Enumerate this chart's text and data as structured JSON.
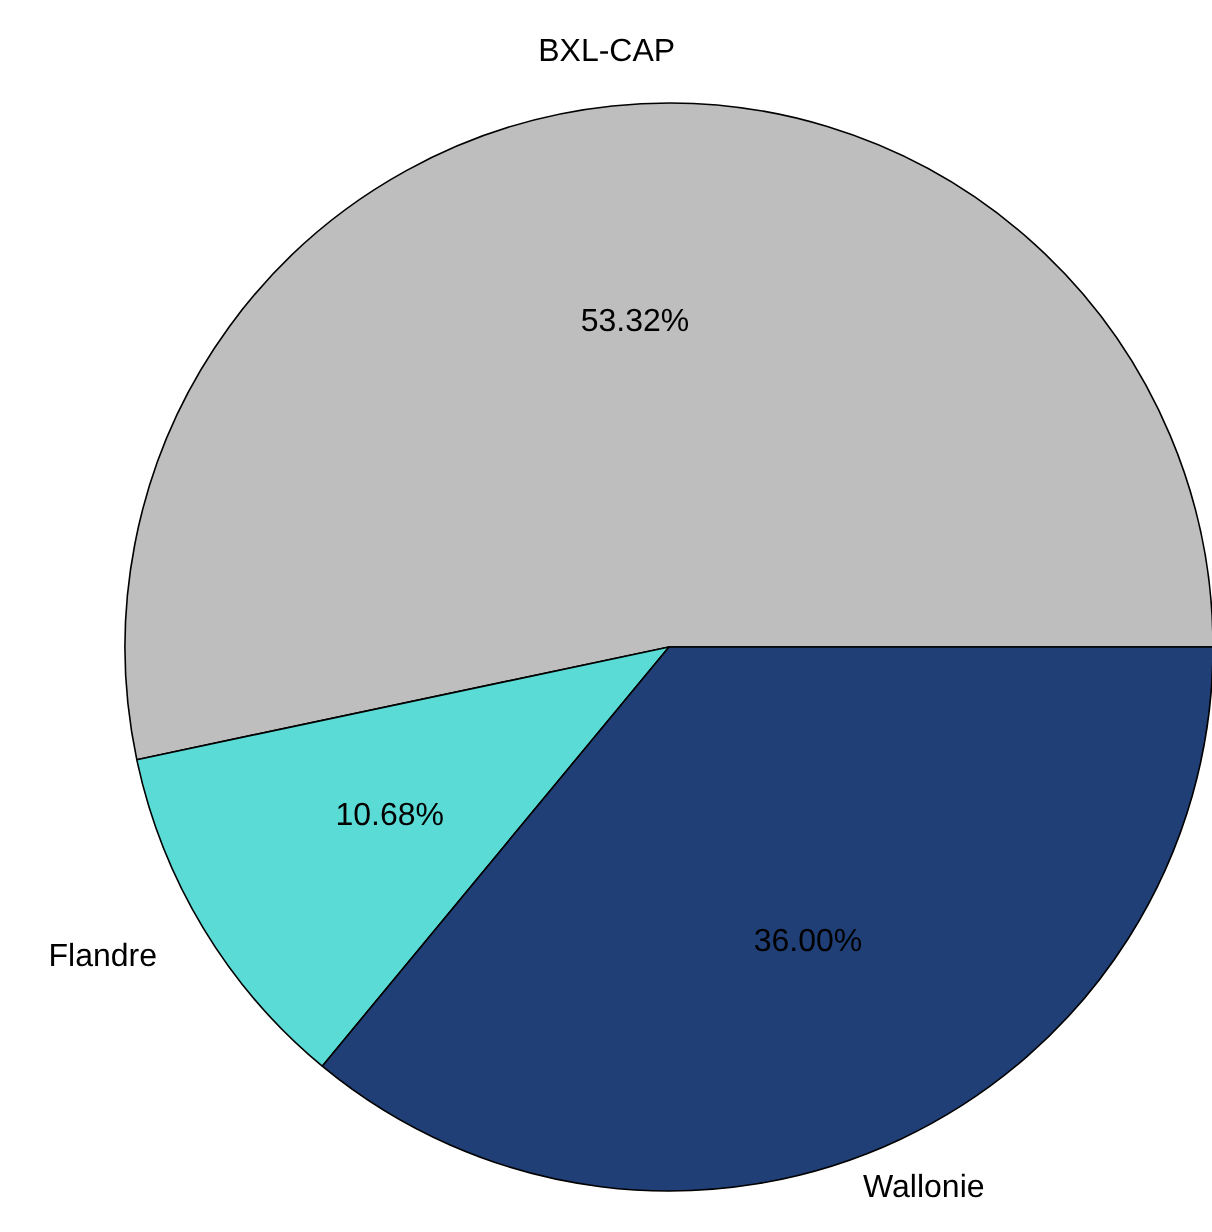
{
  "chart_data": {
    "type": "pie",
    "categories": [
      "BXL-CAP",
      "Flandre",
      "Wallonie"
    ],
    "values": [
      53.32,
      10.68,
      36.0
    ],
    "colors": [
      "#bebebe",
      "#5bdbd6",
      "#213f77"
    ],
    "value_labels": [
      "53.32%",
      "10.68%",
      "36.00%"
    ]
  }
}
